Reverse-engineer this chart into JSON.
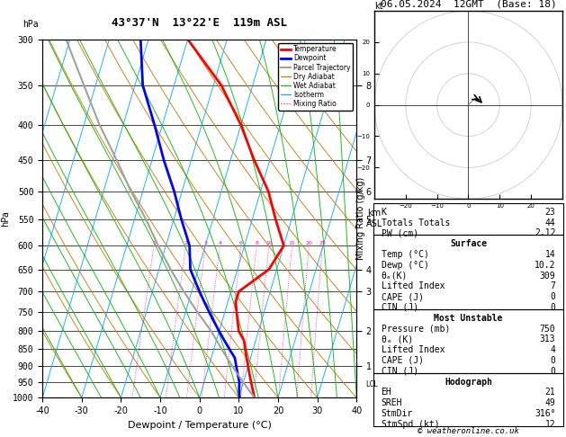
{
  "title_left": "43°37'N  13°22'E  119m ASL",
  "title_date": "06.05.2024  12GMT  (Base: 18)",
  "xlabel": "Dewpoint / Temperature (°C)",
  "ylabel_left": "hPa",
  "pressure_levels": [
    300,
    350,
    400,
    450,
    500,
    550,
    600,
    650,
    700,
    750,
    800,
    850,
    900,
    950,
    1000
  ],
  "p_min": 300,
  "p_max": 1000,
  "temp_xlim": [
    -40,
    40
  ],
  "skew_factor": 27,
  "temp_profile": {
    "pressure": [
      1000,
      975,
      950,
      925,
      900,
      875,
      850,
      825,
      800,
      775,
      750,
      725,
      700,
      650,
      600,
      550,
      500,
      450,
      400,
      350,
      300
    ],
    "temp": [
      14,
      13,
      12,
      11,
      10,
      9,
      8,
      7,
      5,
      4,
      3,
      2,
      2,
      8,
      10,
      6,
      2,
      -4,
      -10,
      -18,
      -30
    ]
  },
  "dewp_profile": {
    "pressure": [
      1000,
      975,
      950,
      925,
      900,
      875,
      850,
      825,
      800,
      775,
      750,
      725,
      700,
      650,
      600,
      550,
      500,
      450,
      400,
      350,
      300
    ],
    "temp": [
      10.2,
      9.5,
      9,
      8,
      7,
      6,
      4,
      2,
      0,
      -2,
      -4,
      -6,
      -8,
      -12,
      -14,
      -18,
      -22,
      -27,
      -32,
      -38,
      -42
    ]
  },
  "parcel_profile": {
    "pressure": [
      1000,
      950,
      900,
      850,
      800,
      750,
      700,
      650,
      600,
      550,
      500,
      450,
      400,
      350,
      300
    ],
    "temp": [
      14,
      10,
      6,
      2,
      -2,
      -7,
      -12,
      -17,
      -22,
      -27,
      -33,
      -39,
      -46,
      -53,
      -61
    ]
  },
  "mixing_ratios": [
    1,
    2,
    3,
    4,
    6,
    8,
    10,
    15,
    20,
    25
  ],
  "km_levels": {
    "1": 900,
    "2": 800,
    "3": 700,
    "4": 650,
    "5": 550,
    "6": 500,
    "7": 450,
    "8": 350
  },
  "lcl_pressure": 955,
  "colors": {
    "temperature": "#ff0000",
    "dewpoint": "#0000ff",
    "parcel": "#a0a0a0",
    "dry_adiabat": "#cc7700",
    "wet_adiabat": "#00bb00",
    "isotherm": "#00aaff",
    "mixing_ratio": "#ff00aa",
    "background": "#ffffff",
    "grid": "#000000"
  },
  "legend_items": [
    {
      "label": "Temperature",
      "color": "#ff0000",
      "lw": 2,
      "ls": "-",
      "style": "line"
    },
    {
      "label": "Dewpoint",
      "color": "#0000ff",
      "lw": 2,
      "ls": "-",
      "style": "line"
    },
    {
      "label": "Parcel Trajectory",
      "color": "#a0a0a0",
      "lw": 1.5,
      "ls": "-",
      "style": "line"
    },
    {
      "label": "Dry Adiabat",
      "color": "#cc7700",
      "lw": 0.8,
      "ls": "-",
      "style": "line"
    },
    {
      "label": "Wet Adiabat",
      "color": "#00bb00",
      "lw": 0.8,
      "ls": "-",
      "style": "line"
    },
    {
      "label": "Isotherm",
      "color": "#00aaff",
      "lw": 0.8,
      "ls": "-",
      "style": "line"
    },
    {
      "label": "Mixing Ratio",
      "color": "#ff00aa",
      "lw": 0.8,
      "ls": ":",
      "style": "line"
    }
  ],
  "info_panel": {
    "K": 23,
    "Totals_Totals": 44,
    "PW_cm": "2.12",
    "Surface_Temp": 14,
    "Surface_Dewp": "10.2",
    "theta_e_K": 309,
    "Lifted_Index": 7,
    "CAPE_J": 0,
    "CIN_J": 0,
    "MU_Pressure_mb": 750,
    "MU_theta_e_K": 313,
    "MU_Lifted_Index": 4,
    "MU_CAPE_J": 0,
    "MU_CIN_J": 0,
    "EH": 21,
    "SREH": 49,
    "StmDir": "316°",
    "StmSpd_kt": 12
  }
}
